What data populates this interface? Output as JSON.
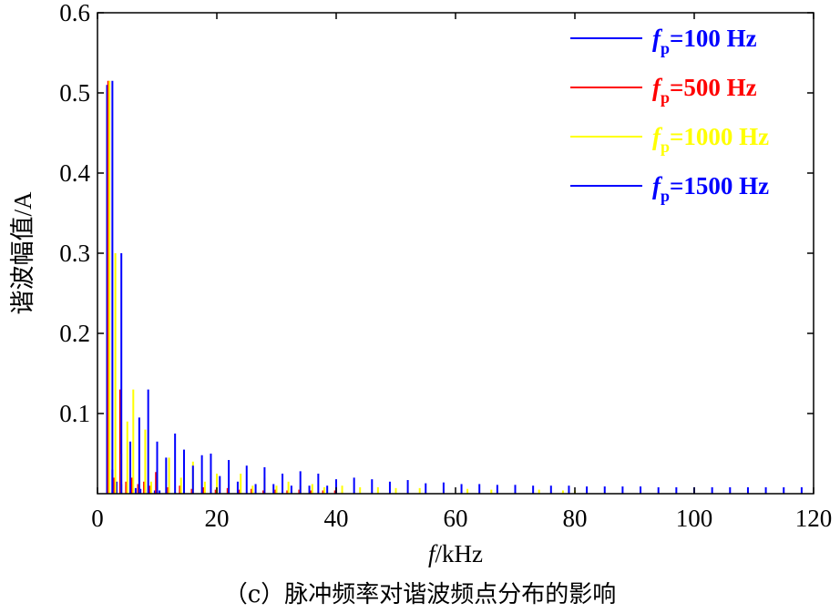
{
  "chart_data": {
    "type": "bar",
    "xlabel": "f/kHz",
    "xlabel_var": "f",
    "xlabel_unit": "/kHz",
    "ylabel": "谐波幅值/A",
    "xlim": [
      0,
      120
    ],
    "ylim": [
      0,
      0.6
    ],
    "x_ticks": [
      "0",
      "20",
      "40",
      "60",
      "80",
      "100",
      "120"
    ],
    "x_tick_values": [
      0,
      20,
      40,
      60,
      80,
      100,
      120
    ],
    "y_ticks": [
      "0.1",
      "0.2",
      "0.3",
      "0.4",
      "0.5",
      "0.6"
    ],
    "y_tick_values": [
      0.1,
      0.2,
      0.3,
      0.4,
      0.5,
      0.6
    ],
    "grid": false,
    "legend_position": "top-right",
    "series": [
      {
        "name": "fp=100 Hz",
        "legend_var": "f",
        "legend_sub": "p",
        "legend_value": "=100 Hz",
        "color": "#0000ff",
        "x": [
          1.6,
          2.5,
          3.2,
          4.0,
          4.8,
          5.6,
          6.4,
          7.2,
          8.0,
          8.8,
          9.6,
          10.4
        ],
        "values": [
          0.51,
          0.03,
          0.015,
          0.012,
          0.01,
          0.008,
          0.007,
          0.006,
          0.005,
          0.005,
          0.004,
          0.004
        ]
      },
      {
        "name": "fp=500 Hz",
        "legend_var": "f",
        "legend_sub": "p",
        "legend_value": "=500 Hz",
        "color": "#ff0000",
        "x": [
          1.8,
          2.8,
          3.8,
          4.8,
          5.8,
          6.8,
          7.8,
          8.8,
          9.8,
          11.8,
          13.8,
          15.8,
          17.8,
          19.8,
          21.8,
          23.8,
          25.8,
          27.8,
          29.8,
          31.8,
          33.8,
          35.8,
          37.8,
          39.8,
          41.0
        ],
        "values": [
          0.515,
          0.02,
          0.13,
          0.015,
          0.02,
          0.012,
          0.015,
          0.01,
          0.027,
          0.008,
          0.01,
          0.006,
          0.008,
          0.005,
          0.007,
          0.005,
          0.006,
          0.004,
          0.005,
          0.004,
          0.005,
          0.004,
          0.004,
          0.004,
          0.003
        ]
      },
      {
        "name": "fp=1000 Hz",
        "legend_var": "f",
        "legend_sub": "p",
        "legend_value": "=1000 Hz",
        "color": "#ffff00",
        "x": [
          2.0,
          3.0,
          4.0,
          5.0,
          6.0,
          7.0,
          8.0,
          9.0,
          10.0,
          12.0,
          14.0,
          16.0,
          18.0,
          20.0,
          22.0,
          24.0,
          26.0,
          28.0,
          30.0,
          32.0,
          34.0,
          36.0,
          38.0,
          41.0,
          44.0,
          47.0,
          50.0,
          54.0,
          58.0,
          62.0,
          66.0,
          70.0,
          74.0,
          78.0,
          80.0
        ],
        "values": [
          0.515,
          0.3,
          0.05,
          0.09,
          0.13,
          0.03,
          0.08,
          0.015,
          0.06,
          0.045,
          0.02,
          0.04,
          0.015,
          0.025,
          0.012,
          0.025,
          0.01,
          0.02,
          0.01,
          0.015,
          0.01,
          0.012,
          0.008,
          0.01,
          0.008,
          0.008,
          0.007,
          0.007,
          0.006,
          0.006,
          0.005,
          0.005,
          0.005,
          0.004,
          0.004
        ]
      },
      {
        "name": "fp=1500 Hz",
        "legend_var": "f",
        "legend_sub": "p",
        "legend_value": "=1500 Hz",
        "color": "#0000ff",
        "x": [
          2.5,
          4.0,
          5.5,
          7.0,
          8.5,
          10.0,
          11.5,
          13.0,
          14.5,
          16.0,
          17.5,
          19.0,
          20.5,
          22.0,
          23.5,
          25.0,
          26.5,
          28.0,
          29.5,
          31.0,
          32.5,
          34.0,
          35.5,
          37.0,
          38.5,
          40.0,
          43.0,
          46.0,
          49.0,
          52.0,
          55.0,
          58.0,
          61.0,
          64.0,
          67.0,
          70.0,
          73.0,
          76.0,
          79.0,
          82.0,
          85.0,
          88.0,
          91.0,
          94.0,
          97.0,
          100.0,
          103.0,
          106.0,
          109.0,
          112.0,
          115.0,
          118.0
        ],
        "values": [
          0.515,
          0.3,
          0.065,
          0.095,
          0.13,
          0.065,
          0.045,
          0.075,
          0.055,
          0.035,
          0.048,
          0.05,
          0.022,
          0.042,
          0.015,
          0.035,
          0.012,
          0.033,
          0.012,
          0.025,
          0.01,
          0.028,
          0.01,
          0.025,
          0.01,
          0.018,
          0.02,
          0.018,
          0.015,
          0.017,
          0.013,
          0.014,
          0.012,
          0.012,
          0.011,
          0.011,
          0.01,
          0.01,
          0.01,
          0.009,
          0.009,
          0.009,
          0.009,
          0.008,
          0.008,
          0.008,
          0.008,
          0.008,
          0.008,
          0.008,
          0.008,
          0.008
        ]
      }
    ]
  },
  "caption": "（c）脉冲频率对谐波频点分布的影响"
}
